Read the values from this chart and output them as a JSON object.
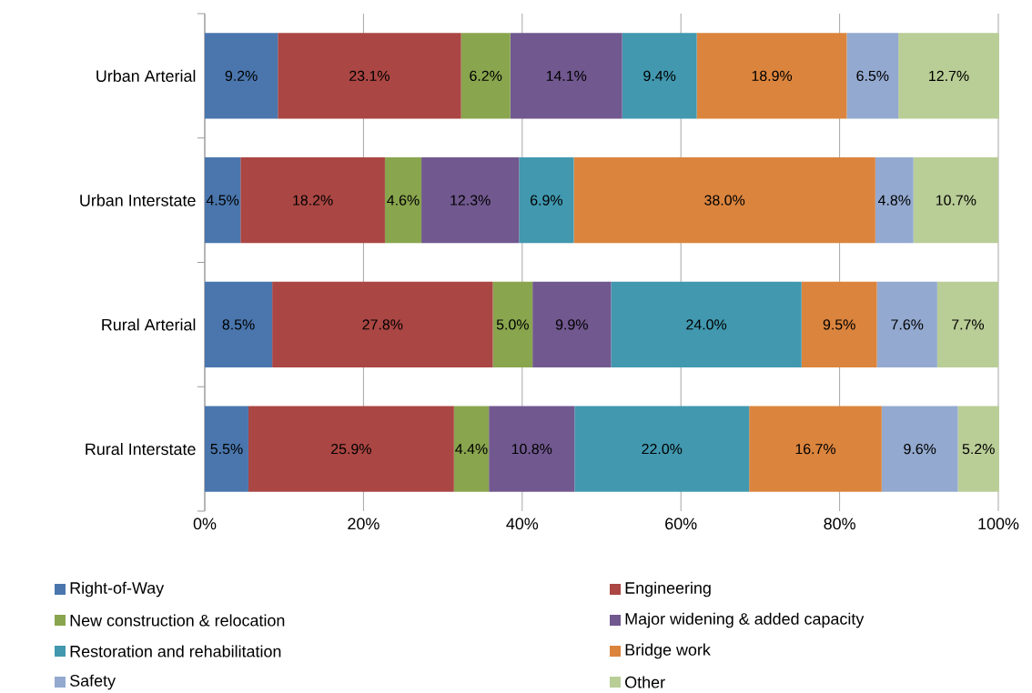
{
  "chart_data": {
    "type": "bar",
    "orientation": "horizontal",
    "stacked": true,
    "categories": [
      "Urban Arterial",
      "Urban Interstate",
      "Rural Arterial",
      "Rural Interstate"
    ],
    "xlim": [
      0,
      100
    ],
    "xticks": [
      {
        "value": 0,
        "label": "0%"
      },
      {
        "value": 20,
        "label": "20%"
      },
      {
        "value": 40,
        "label": "40%"
      },
      {
        "value": 60,
        "label": "60%"
      },
      {
        "value": 80,
        "label": "80%"
      },
      {
        "value": 100,
        "label": "100%"
      }
    ],
    "grid": "x",
    "legend": "bottom",
    "series": [
      {
        "name": "Right-of-Way",
        "color": "#4a76ad",
        "values": [
          9.2,
          4.5,
          8.5,
          5.5
        ],
        "value_labels": [
          "9.2%",
          "4.5%",
          "8.5%",
          "5.5%"
        ]
      },
      {
        "name": "Engineering",
        "color": "#aa4643",
        "values": [
          23.1,
          18.2,
          27.8,
          25.9
        ],
        "value_labels": [
          "23.1%",
          "18.2%",
          "27.8%",
          "25.9%"
        ]
      },
      {
        "name": "New construction & relocation",
        "color": "#89a54e",
        "values": [
          6.2,
          4.6,
          5.0,
          4.4
        ],
        "value_labels": [
          "6.2%",
          "4.6%",
          "5.0%",
          "4.4%"
        ]
      },
      {
        "name": "Major widening & added capacity",
        "color": "#71588f",
        "values": [
          14.1,
          12.3,
          9.9,
          10.8
        ],
        "value_labels": [
          "14.1%",
          "12.3%",
          "9.9%",
          "10.8%"
        ]
      },
      {
        "name": "Restoration and rehabilitation",
        "color": "#4198af",
        "values": [
          9.4,
          6.9,
          24.0,
          22.0
        ],
        "value_labels": [
          "9.4%",
          "6.9%",
          "24.0%",
          "22.0%"
        ]
      },
      {
        "name": "Bridge work",
        "color": "#db843d",
        "values": [
          18.9,
          38.0,
          9.5,
          16.7
        ],
        "value_labels": [
          "18.9%",
          "38.0%",
          "9.5%",
          "16.7%"
        ]
      },
      {
        "name": "Safety",
        "color": "#93a9cf",
        "values": [
          6.5,
          4.8,
          7.6,
          9.6
        ],
        "value_labels": [
          "6.5%",
          "4.8%",
          "7.6%",
          "9.6%"
        ]
      },
      {
        "name": "Other",
        "color": "#b9cd96",
        "values": [
          12.7,
          10.7,
          7.7,
          5.2
        ],
        "value_labels": [
          "12.7%",
          "10.7%",
          "7.7%",
          "5.2%"
        ]
      }
    ]
  }
}
